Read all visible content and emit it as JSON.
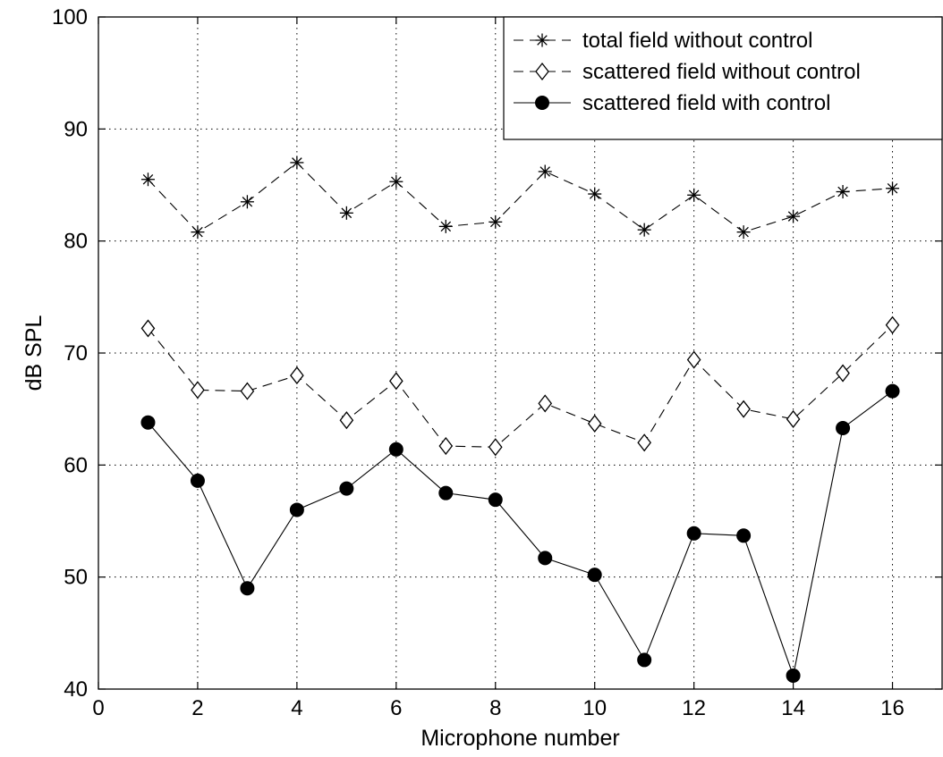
{
  "chart_data": {
    "type": "line",
    "xlabel": "Microphone number",
    "ylabel": "dB SPL",
    "xlim": [
      0,
      17
    ],
    "ylim": [
      40,
      100
    ],
    "xticks": [
      0,
      2,
      4,
      6,
      8,
      10,
      12,
      14,
      16
    ],
    "yticks": [
      40,
      50,
      60,
      70,
      80,
      90,
      100
    ],
    "grid": true,
    "legend_position": "top-right",
    "x": [
      1,
      2,
      3,
      4,
      5,
      6,
      7,
      8,
      9,
      10,
      11,
      12,
      13,
      14,
      15,
      16
    ],
    "series": [
      {
        "name": "total field without control",
        "marker": "asterisk",
        "line_style": "dashed",
        "values": [
          85.5,
          80.8,
          83.5,
          87.0,
          82.5,
          85.3,
          81.3,
          81.7,
          86.2,
          84.2,
          81.0,
          84.1,
          80.8,
          82.2,
          84.4,
          84.7
        ]
      },
      {
        "name": "scattered field without control",
        "marker": "diamond",
        "line_style": "dashed",
        "values": [
          72.2,
          66.7,
          66.6,
          68.0,
          64.0,
          67.5,
          61.7,
          61.6,
          65.5,
          63.7,
          62.0,
          69.4,
          65.0,
          64.1,
          68.2,
          72.5
        ]
      },
      {
        "name": "scattered field with control",
        "marker": "filled-circle",
        "line_style": "solid",
        "values": [
          63.8,
          58.6,
          49.0,
          56.0,
          57.9,
          61.4,
          57.5,
          56.9,
          51.7,
          50.2,
          42.6,
          53.9,
          53.7,
          41.2,
          63.3,
          66.6
        ]
      }
    ]
  }
}
